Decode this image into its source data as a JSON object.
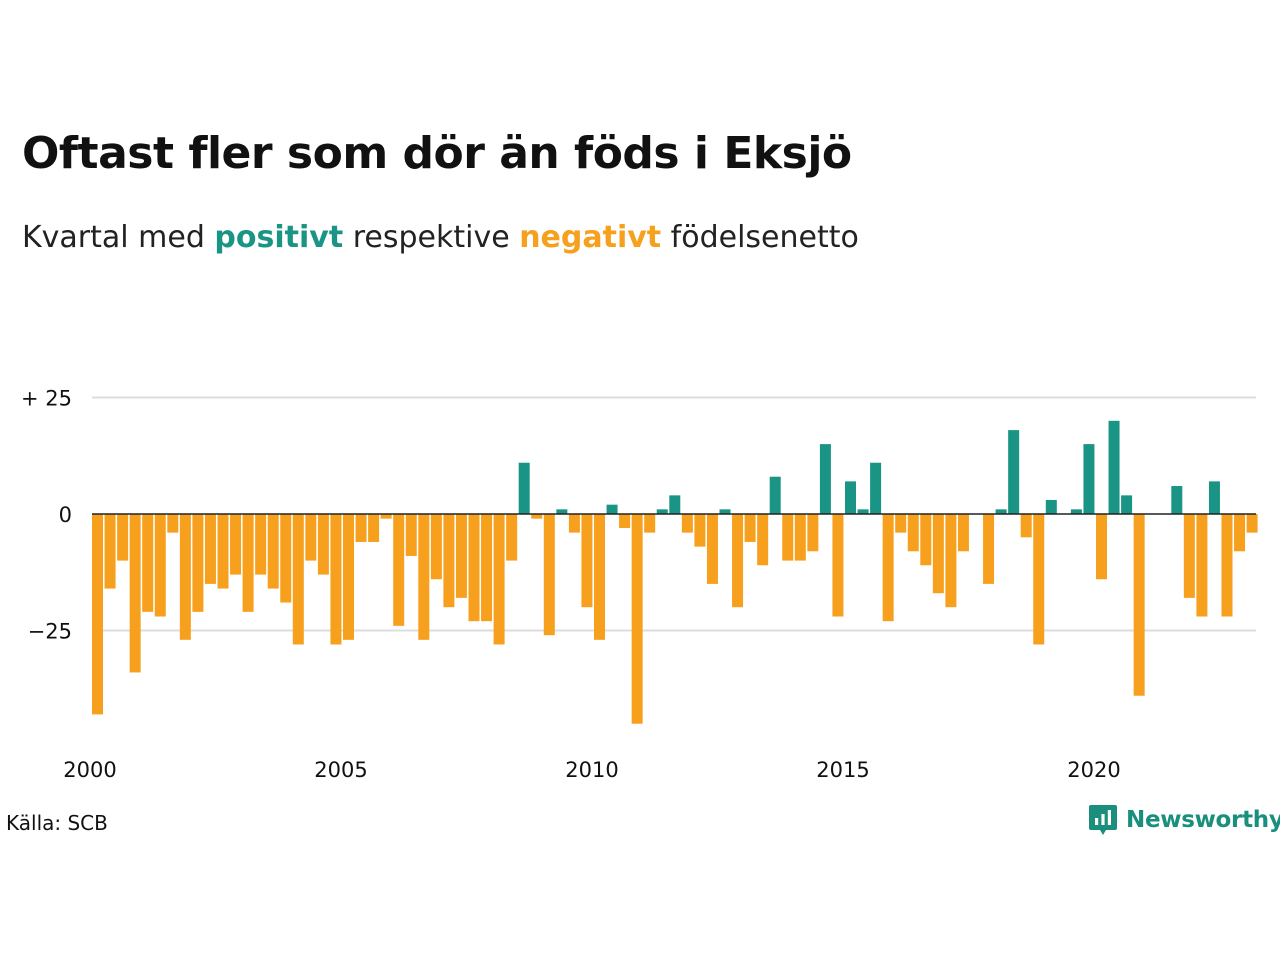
{
  "title": "Oftast fler som dör än föds i Eksjö",
  "subtitle": {
    "part1": "Kvartal med ",
    "positive_word": "positivt",
    "part2": " respektive ",
    "negative_word": "negativt",
    "part3": " födelsenetto"
  },
  "source": "Källa: SCB",
  "brand": "Newsworthy",
  "colors": {
    "positive": "#1a9484",
    "negative": "#f7a01d",
    "grid": "#dddddd",
    "zero_line": "#222222"
  },
  "chart_data": {
    "type": "bar",
    "x_start": "2000 Q1",
    "x_ticks": [
      "2000",
      "2005",
      "2010",
      "2015",
      "2020"
    ],
    "y_ticks": [
      "+ 25",
      "0",
      "−25"
    ],
    "y_tick_values": [
      25,
      0,
      -25
    ],
    "ylim": [
      -50,
      30
    ],
    "grid": true,
    "values": [
      -43,
      -16,
      -10,
      -34,
      -21,
      -22,
      -4,
      -27,
      -21,
      -15,
      -16,
      -13,
      -21,
      -13,
      -16,
      -19,
      -28,
      -10,
      -13,
      -28,
      -27,
      -6,
      -6,
      -1,
      -24,
      -9,
      -27,
      -14,
      -20,
      -18,
      -23,
      -23,
      -28,
      -10,
      11,
      -1,
      -26,
      1,
      -4,
      -20,
      -27,
      2,
      -3,
      -45,
      -4,
      1,
      4,
      -4,
      -7,
      -15,
      1,
      -20,
      -6,
      -11,
      8,
      -10,
      -10,
      -8,
      15,
      -22,
      7,
      1,
      11,
      -23,
      -4,
      -8,
      -11,
      -17,
      -20,
      -8,
      0,
      -15,
      1,
      18,
      -5,
      -28,
      3,
      0,
      1,
      15,
      -14,
      20,
      4,
      -39,
      0,
      0,
      6,
      -18,
      -22,
      7,
      -22,
      -8,
      -4
    ]
  }
}
